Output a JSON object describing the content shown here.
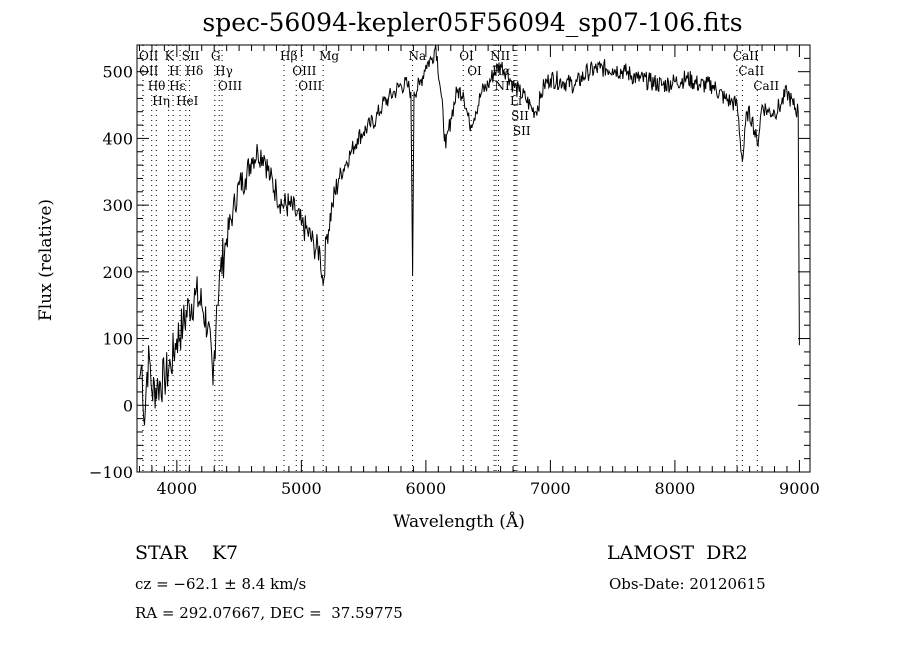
{
  "chart_data": {
    "type": "line",
    "title": "spec-56094-kepler05F56094_sp07-106.fits",
    "xlabel": "Wavelength (Å)",
    "ylabel": "Flux (relative)",
    "xlim": [
      3680,
      9085
    ],
    "ylim": [
      -100,
      540
    ],
    "xticks": [
      4000,
      5000,
      6000,
      7000,
      8000,
      9000
    ],
    "yticks": [
      -100,
      0,
      100,
      200,
      300,
      400,
      500
    ],
    "series": [
      {
        "name": "spectrum",
        "x": [
          3700,
          3720,
          3740,
          3760,
          3780,
          3800,
          3850,
          3900,
          3950,
          4000,
          4050,
          4100,
          4150,
          4200,
          4250,
          4290,
          4320,
          4350,
          4400,
          4450,
          4500,
          4550,
          4600,
          4650,
          4700,
          4750,
          4800,
          4850,
          4900,
          4950,
          5000,
          5050,
          5100,
          5150,
          5175,
          5200,
          5250,
          5300,
          5350,
          5400,
          5450,
          5500,
          5550,
          5600,
          5650,
          5700,
          5750,
          5800,
          5850,
          5880,
          5893,
          5905,
          5950,
          6000,
          6050,
          6080,
          6120,
          6160,
          6200,
          6250,
          6300,
          6350,
          6400,
          6450,
          6500,
          6550,
          6600,
          6650,
          6700,
          6750,
          6800,
          6850,
          6880,
          6920,
          6950,
          7000,
          7100,
          7200,
          7300,
          7400,
          7500,
          7600,
          7700,
          7800,
          7900,
          8000,
          8100,
          8200,
          8300,
          8400,
          8450,
          8500,
          8542,
          8580,
          8620,
          8662,
          8700,
          8750,
          8800,
          8850,
          8900,
          8950,
          8990,
          9000
        ],
        "y": [
          40,
          60,
          -30,
          50,
          70,
          20,
          30,
          40,
          60,
          100,
          120,
          150,
          165,
          150,
          120,
          30,
          150,
          200,
          250,
          290,
          330,
          340,
          370,
          380,
          375,
          340,
          320,
          300,
          300,
          290,
          270,
          260,
          240,
          230,
          180,
          250,
          300,
          340,
          360,
          380,
          400,
          410,
          420,
          430,
          450,
          460,
          470,
          480,
          480,
          470,
          195,
          470,
          480,
          510,
          520,
          540,
          470,
          385,
          430,
          470,
          470,
          420,
          440,
          470,
          480,
          500,
          510,
          500,
          480,
          470,
          460,
          445,
          440,
          460,
          480,
          490,
          485,
          480,
          500,
          505,
          505,
          500,
          490,
          485,
          480,
          485,
          490,
          480,
          480,
          460,
          455,
          450,
          365,
          440,
          430,
          390,
          450,
          440,
          440,
          450,
          470,
          450,
          440,
          90
        ]
      }
    ],
    "lines": [
      {
        "name": "Hθ",
        "w": 3798,
        "row": 0
      },
      {
        "name": "K",
        "w": 3934,
        "row": 0
      },
      {
        "name": "Hδ",
        "w": 4102,
        "row": 0
      },
      {
        "name": "OIII",
        "w": 4363,
        "row": 0
      },
      {
        "name": "OIII",
        "w": 5007,
        "row": 0
      },
      {
        "name": "OI",
        "w": 6300,
        "row": 0
      },
      {
        "name": "Hα",
        "w": 6563,
        "row": 0
      },
      {
        "name": "SII",
        "w": 6717,
        "row": 0
      },
      {
        "name": "CaII",
        "w": 8662,
        "row": 0
      },
      {
        "name": "OII",
        "w": 3727,
        "row": 1
      },
      {
        "name": "Hε",
        "w": 3970,
        "row": 1
      },
      {
        "name": "HeI",
        "w": 4026,
        "row": 1
      },
      {
        "name": "SII",
        "w": 4072,
        "row": 1
      },
      {
        "name": "Hγ",
        "w": 4340,
        "row": 1
      },
      {
        "name": "OIII",
        "w": 4959,
        "row": 1
      },
      {
        "name": "Na",
        "w": 5893,
        "row": 1
      },
      {
        "name": "NII",
        "w": 6583,
        "row": 1
      },
      {
        "name": "Li",
        "w": 6708,
        "row": 1
      },
      {
        "name": "CaII",
        "w": 8542,
        "row": 1
      },
      {
        "name": "OII",
        "w": 3729,
        "row": 2
      },
      {
        "name": "Hη",
        "w": 3835,
        "row": 2
      },
      {
        "name": "H",
        "w": 3969,
        "row": 2
      },
      {
        "name": "G",
        "w": 4305,
        "row": 2
      },
      {
        "name": "Hβ",
        "w": 4861,
        "row": 2
      },
      {
        "name": "Mg",
        "w": 5175,
        "row": 2
      },
      {
        "name": "OI",
        "w": 6364,
        "row": 2
      },
      {
        "name": "NII",
        "w": 6548,
        "row": 2
      },
      {
        "name": "SII",
        "w": 6731,
        "row": 2
      },
      {
        "name": "CaII",
        "w": 8498,
        "row": 2
      }
    ]
  },
  "footer": {
    "class_label": "STAR    K7",
    "survey": "LAMOST  DR2",
    "cz": "cz = −62.1 ± 8.4 km/s",
    "obs_date": "Obs-Date: 20120615",
    "coords": "RA = 292.07667, DEC =  37.59775"
  }
}
